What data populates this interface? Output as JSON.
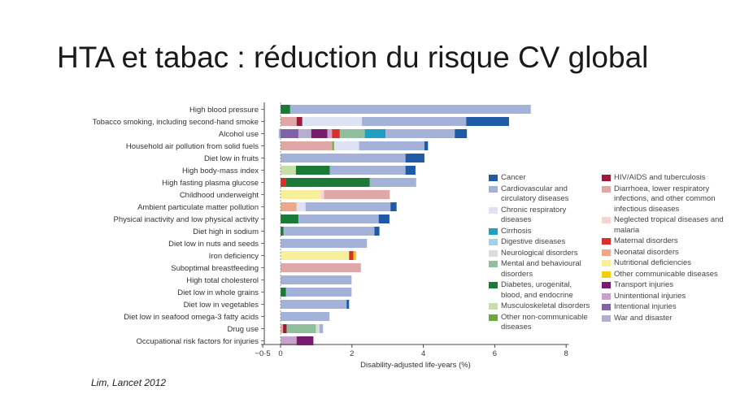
{
  "slide": {
    "title": "HTA et tabac : réduction du risque CV global",
    "citation": "Lim, Lancet 2012"
  },
  "colors": {
    "cancer": "#1f5aa6",
    "cardio": "#a4b2da",
    "chronic_resp": "#dde3f2",
    "cirrhosis": "#1f9fc4",
    "digestive": "#a6cfe6",
    "neuro": "#d9dfdb",
    "mental": "#8fbf9c",
    "diabetes": "#1c7a38",
    "musculo": "#c6e0a8",
    "other_ncd": "#6aaa3a",
    "hiv_tb": "#9b1b3a",
    "diarrhoea": "#e0a7a7",
    "ntd": "#f4d3d3",
    "maternal": "#d9302a",
    "neonatal": "#f0a68a",
    "nutritional": "#f8ef9a",
    "other_comm": "#f2cd12",
    "transport": "#7a1a6e",
    "unintentional": "#c8a2cd",
    "intentional": "#7f62a8",
    "war": "#b4aecf"
  },
  "legend": {
    "col1": [
      {
        "key": "cancer",
        "label": "Cancer"
      },
      {
        "key": "cardio",
        "label": "Cardiovascular and circulatory diseases"
      },
      {
        "key": "chronic_resp",
        "label": "Chronic respiratory diseases"
      },
      {
        "key": "cirrhosis",
        "label": "Cirrhosis"
      },
      {
        "key": "digestive",
        "label": "Digestive diseases"
      },
      {
        "key": "neuro",
        "label": "Neurological disorders"
      },
      {
        "key": "mental",
        "label": "Mental and behavioural disorders"
      },
      {
        "key": "diabetes",
        "label": "Diabetes, urogenital, blood, and endocrine"
      },
      {
        "key": "musculo",
        "label": "Musculoskeletal disorders"
      },
      {
        "key": "other_ncd",
        "label": "Other non-communicable diseases"
      }
    ],
    "col2": [
      {
        "key": "hiv_tb",
        "label": "HIV/AIDS and tuberculosis"
      },
      {
        "key": "diarrhoea",
        "label": "Diarrhoea, lower respiratory infections, and other common infectious diseases"
      },
      {
        "key": "ntd",
        "label": "Neglected tropical diseases and malaria"
      },
      {
        "key": "maternal",
        "label": "Maternal disorders"
      },
      {
        "key": "neonatal",
        "label": "Neonatal disorders"
      },
      {
        "key": "nutritional",
        "label": "Nutritional deficiencies"
      },
      {
        "key": "other_comm",
        "label": "Other communicable diseases"
      },
      {
        "key": "transport",
        "label": "Transport injuries"
      },
      {
        "key": "unintentional",
        "label": "Unintentional injuries"
      },
      {
        "key": "intentional",
        "label": "Intentional injuries"
      },
      {
        "key": "war",
        "label": "War and disaster"
      }
    ]
  },
  "chart_data": {
    "type": "bar",
    "orientation": "horizontal",
    "stacked": true,
    "xlabel": "Disability-adjusted life-years (%)",
    "xlim": [
      -0.5,
      8
    ],
    "xticks": [
      -0.5,
      0,
      2,
      4,
      6,
      8
    ],
    "xtick_labels": [
      "−0·5",
      "0",
      "2",
      "4",
      "6",
      "8"
    ],
    "legend_position": "right",
    "categories": [
      "High blood pressure",
      "Tobacco smoking, including second-hand smoke",
      "Alcohol use",
      "Household air pollution from solid fuels",
      "Diet low in fruits",
      "High body-mass index",
      "High fasting plasma glucose",
      "Childhood underweight",
      "Ambient particulate matter pollution",
      "Physical inactivity and low physical activity",
      "Diet high in sodium",
      "Diet low in nuts and seeds",
      "Iron deficiency",
      "Suboptimal breastfeeding",
      "High total cholesterol",
      "Diet low in whole grains",
      "Diet low in vegetables",
      "Diet low in seafood omega-3 fatty acids",
      "Drug use",
      "Occupational risk factors for injuries"
    ],
    "rows": [
      {
        "neg": [],
        "pos": [
          [
            "diabetes",
            0.27
          ],
          [
            "cardio",
            6.74
          ]
        ]
      },
      {
        "neg": [],
        "pos": [
          [
            "diarrhoea",
            0.45
          ],
          [
            "hiv_tb",
            0.16
          ],
          [
            "chronic_resp",
            1.67
          ],
          [
            "cardio",
            2.92
          ],
          [
            "cancer",
            1.2
          ]
        ]
      },
      {
        "neg": [
          [
            "cardio",
            -0.05
          ]
        ],
        "pos": [
          [
            "intentional",
            0.5
          ],
          [
            "war",
            0.36
          ],
          [
            "transport",
            0.45
          ],
          [
            "unintentional",
            0.13
          ],
          [
            "maternal",
            0.22
          ],
          [
            "mental",
            0.7
          ],
          [
            "cirrhosis",
            0.58
          ],
          [
            "cardio",
            1.94
          ],
          [
            "cancer",
            0.34
          ]
        ]
      },
      {
        "neg": [],
        "pos": [
          [
            "diarrhoea",
            1.45
          ],
          [
            "other_ncd",
            0.05
          ],
          [
            "chronic_resp",
            0.7
          ],
          [
            "cardio",
            1.83
          ],
          [
            "cancer",
            0.1
          ]
        ]
      },
      {
        "neg": [],
        "pos": [
          [
            "cardio",
            3.5
          ],
          [
            "cancer",
            0.53
          ]
        ]
      },
      {
        "neg": [],
        "pos": [
          [
            "musculo",
            0.43
          ],
          [
            "diabetes",
            0.95
          ],
          [
            "cardio",
            2.12
          ],
          [
            "cancer",
            0.28
          ]
        ]
      },
      {
        "neg": [],
        "pos": [
          [
            "maternal",
            0.15
          ],
          [
            "diabetes",
            2.35
          ],
          [
            "cardio",
            1.3
          ]
        ]
      },
      {
        "neg": [],
        "pos": [
          [
            "nutritional",
            1.12
          ],
          [
            "ntd",
            0.1
          ],
          [
            "diarrhoea",
            1.84
          ]
        ]
      },
      {
        "neg": [],
        "pos": [
          [
            "neonatal",
            0.45
          ],
          [
            "chronic_resp",
            0.25
          ],
          [
            "cardio",
            2.38
          ],
          [
            "cancer",
            0.17
          ]
        ]
      },
      {
        "neg": [],
        "pos": [
          [
            "diabetes",
            0.5
          ],
          [
            "cardio",
            2.25
          ],
          [
            "cancer",
            0.3
          ]
        ]
      },
      {
        "neg": [],
        "pos": [
          [
            "diabetes",
            0.08
          ],
          [
            "cardio",
            2.55
          ],
          [
            "cancer",
            0.14
          ]
        ]
      },
      {
        "neg": [],
        "pos": [
          [
            "cardio",
            2.42
          ]
        ]
      },
      {
        "neg": [],
        "pos": [
          [
            "nutritional",
            1.92
          ],
          [
            "maternal",
            0.12
          ],
          [
            "other_comm",
            0.08
          ]
        ]
      },
      {
        "neg": [],
        "pos": [
          [
            "diarrhoea",
            2.25
          ]
        ]
      },
      {
        "neg": [],
        "pos": [
          [
            "cardio",
            1.99
          ]
        ]
      },
      {
        "neg": [],
        "pos": [
          [
            "diabetes",
            0.15
          ],
          [
            "cardio",
            1.84
          ]
        ]
      },
      {
        "neg": [],
        "pos": [
          [
            "cardio",
            1.85
          ],
          [
            "cancer",
            0.07
          ]
        ]
      },
      {
        "neg": [],
        "pos": [
          [
            "cardio",
            1.37
          ]
        ]
      },
      {
        "neg": [],
        "pos": [
          [
            "neonatal",
            0.07
          ],
          [
            "hiv_tb",
            0.1
          ],
          [
            "mental",
            0.82
          ],
          [
            "neuro",
            0.1
          ],
          [
            "cardio",
            0.1
          ]
        ]
      },
      {
        "neg": [],
        "pos": [
          [
            "unintentional",
            0.45
          ],
          [
            "transport",
            0.47
          ]
        ]
      }
    ]
  }
}
